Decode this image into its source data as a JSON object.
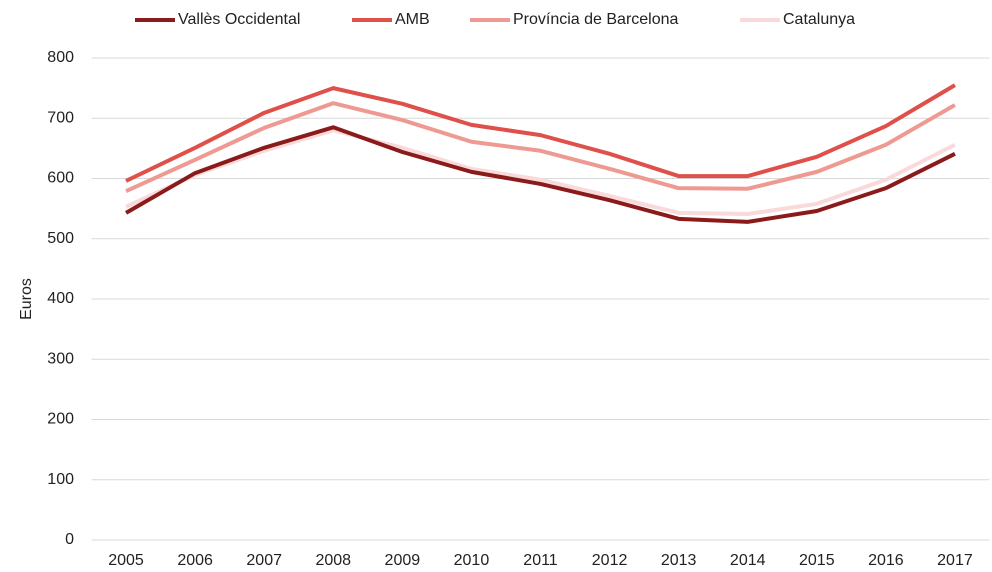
{
  "chart_data": {
    "type": "line",
    "y_label": "Euros",
    "categories": [
      "2005",
      "2006",
      "2007",
      "2008",
      "2009",
      "2010",
      "2011",
      "2012",
      "2013",
      "2014",
      "2015",
      "2016",
      "2017"
    ],
    "series": [
      {
        "name": "Vallès Occidental",
        "color": "#8b1a1a",
        "values": [
          543,
          609,
          651,
          685,
          644,
          611,
          591,
          564,
          533,
          528,
          546,
          584,
          641
        ]
      },
      {
        "name": "AMB",
        "color": "#e0504a",
        "values": [
          596,
          651,
          709,
          750,
          724,
          689,
          672,
          641,
          604,
          604,
          636,
          687,
          755
        ]
      },
      {
        "name": "Província de Barcelona",
        "color": "#ee9a92",
        "values": [
          579,
          631,
          684,
          725,
          697,
          661,
          646,
          616,
          584,
          583,
          611,
          656,
          722
        ]
      },
      {
        "name": "Catalunya",
        "color": "#f9d9d9",
        "values": [
          553,
          606,
          646,
          680,
          651,
          616,
          598,
          571,
          543,
          541,
          558,
          598,
          656
        ]
      }
    ],
    "ylim": [
      0,
      800
    ],
    "yticks": [
      0,
      100,
      200,
      300,
      400,
      500,
      600,
      700,
      800
    ],
    "grid": true,
    "legend": "top"
  }
}
